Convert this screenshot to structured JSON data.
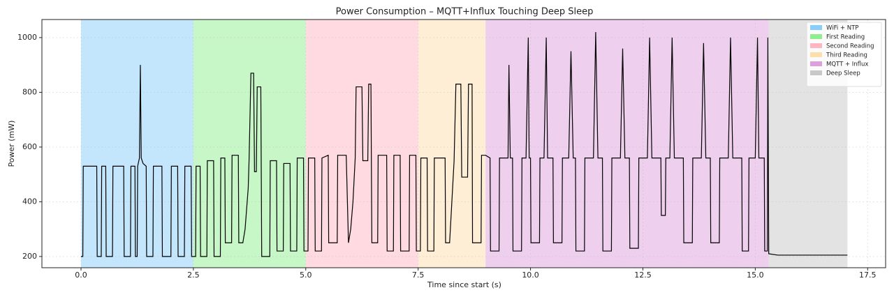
{
  "chart_data": {
    "type": "line",
    "title": "Power Consumption – MQTT+Influx Touching Deep Sleep",
    "x_label": "Time since start (s)",
    "y_label": "Power (mW)",
    "xlim": [
      -0.87,
      17.9
    ],
    "ylim": [
      159,
      1066
    ],
    "xticks": [
      {
        "value": 0,
        "label": "0.0"
      },
      2.5,
      {
        "value": 5,
        "label": "5.0"
      },
      7.5,
      {
        "value": 10,
        "label": "10.0"
      },
      12.5,
      {
        "value": 15,
        "label": "15.0"
      },
      17.5
    ],
    "yticks": [
      200,
      400,
      600,
      800,
      1000
    ],
    "grid": true,
    "legend": "upper right",
    "bands": [
      {
        "name": "WiFi + NTP",
        "start": 0,
        "end": 2.5,
        "color": "#87cefa"
      },
      {
        "name": "First Reading",
        "start": 2.5,
        "end": 5.0,
        "color": "#90ee90"
      },
      {
        "name": "Second Reading",
        "start": 5.0,
        "end": 7.5,
        "color": "#ffb6c1"
      },
      {
        "name": "Third Reading",
        "start": 7.5,
        "end": 9.0,
        "color": "#ffdead"
      },
      {
        "name": "MQTT + Influx",
        "start": 9.0,
        "end": 15.3,
        "color": "#dda0dd"
      },
      {
        "name": "Deep Sleep",
        "start": 15.3,
        "end": 17.05,
        "color": "#c8c8c8"
      }
    ],
    "series": [
      {
        "color": "#000000",
        "x": [
          0,
          0.04,
          0.05,
          0.35,
          0.36,
          0.45,
          0.46,
          0.55,
          0.56,
          0.7,
          0.71,
          0.95,
          0.96,
          1.1,
          1.11,
          1.2,
          1.21,
          1.25,
          1.26,
          1.3,
          1.32,
          1.34,
          1.38,
          1.45,
          1.46,
          1.6,
          1.61,
          1.8,
          1.81,
          2.0,
          2.01,
          2.15,
          2.16,
          2.3,
          2.31,
          2.45,
          2.46,
          2.55,
          2.56,
          2.65,
          2.66,
          2.8,
          2.81,
          2.95,
          2.96,
          3.1,
          3.11,
          3.2,
          3.21,
          3.35,
          3.36,
          3.5,
          3.51,
          3.6,
          3.65,
          3.72,
          3.74,
          3.78,
          3.84,
          3.86,
          3.9,
          3.92,
          4.0,
          4.02,
          4.2,
          4.21,
          4.35,
          4.36,
          4.5,
          4.51,
          4.65,
          4.66,
          4.8,
          4.81,
          4.95,
          4.96,
          5.05,
          5.06,
          5.2,
          5.21,
          5.35,
          5.36,
          5.5,
          5.51,
          5.7,
          5.71,
          5.9,
          5.95,
          6.0,
          6.05,
          6.1,
          6.12,
          6.25,
          6.27,
          6.38,
          6.4,
          6.45,
          6.47,
          6.6,
          6.61,
          6.8,
          6.81,
          6.95,
          6.96,
          7.1,
          7.11,
          7.3,
          7.31,
          7.45,
          7.46,
          7.55,
          7.56,
          7.7,
          7.71,
          7.85,
          7.86,
          8.1,
          8.11,
          8.2,
          8.25,
          8.3,
          8.34,
          8.45,
          8.47,
          8.6,
          8.62,
          8.7,
          8.71,
          8.9,
          8.91,
          9.0,
          9.1,
          9.11,
          9.3,
          9.31,
          9.5,
          9.52,
          9.55,
          9.6,
          9.61,
          9.8,
          9.81,
          9.9,
          9.95,
          9.97,
          10.0,
          10.01,
          10.2,
          10.21,
          10.3,
          10.35,
          10.38,
          10.5,
          10.51,
          10.7,
          10.71,
          10.85,
          10.9,
          10.95,
          11.0,
          11.01,
          11.2,
          11.21,
          11.4,
          11.45,
          11.5,
          11.6,
          11.61,
          11.8,
          11.81,
          12.0,
          12.05,
          12.1,
          12.2,
          12.21,
          12.4,
          12.41,
          12.6,
          12.65,
          12.7,
          12.9,
          12.91,
          13.0,
          13.01,
          13.1,
          13.15,
          13.2,
          13.4,
          13.41,
          13.6,
          13.61,
          13.8,
          13.85,
          13.9,
          14.0,
          14.01,
          14.2,
          14.21,
          14.4,
          14.45,
          14.5,
          14.7,
          14.71,
          14.85,
          14.86,
          15.0,
          15.05,
          15.08,
          15.2,
          15.21,
          15.27,
          15.28,
          15.3,
          15.5,
          16.0,
          16.5,
          17.05
        ],
        "values": [
          200,
          200,
          530,
          530,
          200,
          200,
          530,
          530,
          200,
          200,
          530,
          530,
          200,
          200,
          530,
          530,
          200,
          200,
          530,
          560,
          900,
          560,
          540,
          530,
          200,
          200,
          530,
          530,
          200,
          200,
          530,
          530,
          200,
          200,
          530,
          530,
          200,
          200,
          530,
          530,
          200,
          200,
          550,
          550,
          200,
          200,
          560,
          560,
          250,
          250,
          570,
          570,
          250,
          250,
          300,
          450,
          560,
          870,
          870,
          510,
          510,
          820,
          820,
          200,
          200,
          550,
          550,
          220,
          220,
          540,
          540,
          220,
          220,
          560,
          560,
          220,
          220,
          560,
          560,
          220,
          220,
          560,
          570,
          250,
          250,
          570,
          570,
          250,
          300,
          400,
          560,
          820,
          820,
          550,
          550,
          830,
          830,
          250,
          250,
          570,
          570,
          220,
          220,
          570,
          570,
          220,
          220,
          570,
          570,
          220,
          220,
          560,
          560,
          220,
          220,
          560,
          560,
          250,
          250,
          400,
          550,
          830,
          830,
          490,
          490,
          830,
          830,
          250,
          250,
          570,
          570,
          560,
          220,
          220,
          560,
          560,
          900,
          560,
          560,
          220,
          220,
          560,
          560,
          1000,
          560,
          560,
          250,
          250,
          560,
          560,
          1000,
          560,
          560,
          250,
          250,
          560,
          560,
          950,
          560,
          560,
          220,
          220,
          560,
          560,
          1020,
          560,
          560,
          220,
          220,
          560,
          560,
          960,
          560,
          560,
          230,
          230,
          560,
          560,
          1000,
          560,
          560,
          350,
          350,
          560,
          560,
          1000,
          560,
          560,
          250,
          250,
          560,
          560,
          980,
          560,
          560,
          250,
          250,
          560,
          560,
          1000,
          560,
          560,
          220,
          220,
          560,
          560,
          1000,
          560,
          560,
          220,
          220,
          1000,
          210,
          205,
          205,
          205,
          205
        ]
      }
    ]
  }
}
